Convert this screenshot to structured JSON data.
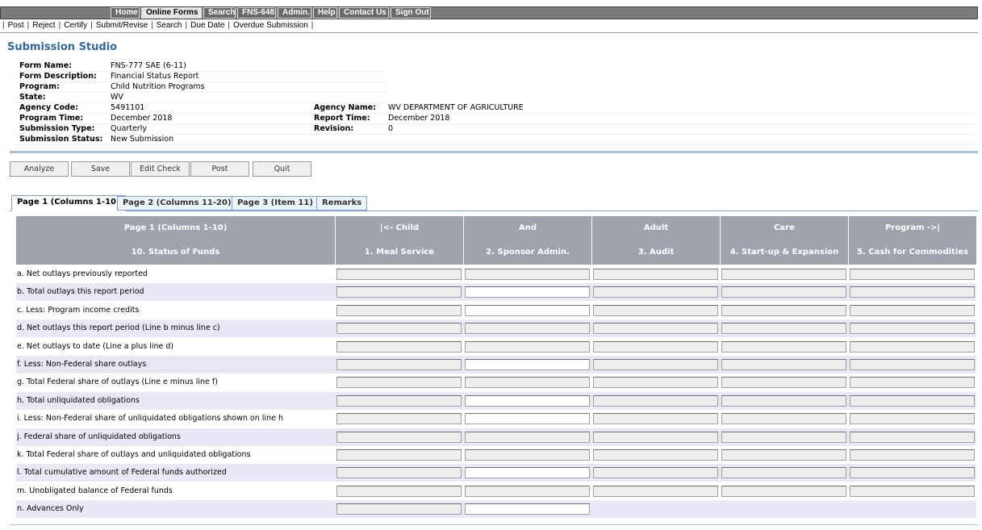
{
  "nav": {
    "top": [
      "Home",
      "Online Forms",
      "Search",
      "FNS-648",
      "Admin.",
      "Help",
      "Contact Us",
      "Sign Out"
    ],
    "sub": [
      "Post",
      "Reject",
      "Certify",
      "Submit/Revise",
      "Search",
      "Due Date",
      "Overdue Submission"
    ]
  },
  "title": "Submission Studio",
  "info": {
    "left": [
      {
        "label": "Form Name:",
        "value": "FNS-777 SAE (6-11)"
      },
      {
        "label": "Form Description:",
        "value": "Financial Status Report"
      },
      {
        "label": "Program:",
        "value": "Child Nutrition Programs"
      },
      {
        "label": "State:",
        "value": "WV"
      },
      {
        "label": "Agency Code:",
        "value": "5491101"
      },
      {
        "label": "Program Time:",
        "value": "December 2018"
      },
      {
        "label": "Submission Type:",
        "value": "Quarterly"
      },
      {
        "label": "Submission Status:",
        "value": "New Submission"
      }
    ],
    "right": [
      {
        "label": "Agency Name:",
        "value": "WV DEPARTMENT OF AGRICULTURE"
      },
      {
        "label": "Report Time:",
        "value": "December 2018"
      },
      {
        "label": "Revision:",
        "value": "0"
      }
    ]
  },
  "buttons": [
    "Analyze",
    "Save",
    "Edit Check",
    "Post",
    "Quit"
  ],
  "tabs": [
    "Page 1 (Columns 1-10)",
    "Page 2 (Columns 11-20)",
    "Page 3 (Item 11)",
    "Remarks"
  ],
  "table": {
    "header1": [
      "Page 1 (Columns 1-10)",
      "|<- Child",
      "And",
      "Adult",
      "Care",
      "Program ->|"
    ],
    "header2": [
      "10. Status of Funds",
      "1. Meal Service",
      "2. Sponsor Admin.",
      "3. Audit",
      "4. Start-up & Expansion",
      "5. Cash for Commodities"
    ],
    "rows": [
      "a. Net outlays previously reported",
      "b. Total outlays this report period",
      "c. Less: Program income credits",
      "d. Net outlays this report period (Line b minus line c)",
      "e. Net outlays to date (Line a plus line d)",
      "f. Less: Non-Federal share outlays",
      "g. Total Federal share of outlays (Line e minus line f)",
      "h. Total unliquidated obligations",
      "i. Less: Non-Federal share of unliquidated obligations shown on line h",
      "j. Federal share of unliquidated obligations",
      "k. Total Federal share of outlays and unliquidated obligations",
      "l. Total cumulative amount of Federal funds authorized",
      "m. Unobligated balance of Federal funds",
      "n. Advances Only"
    ]
  }
}
